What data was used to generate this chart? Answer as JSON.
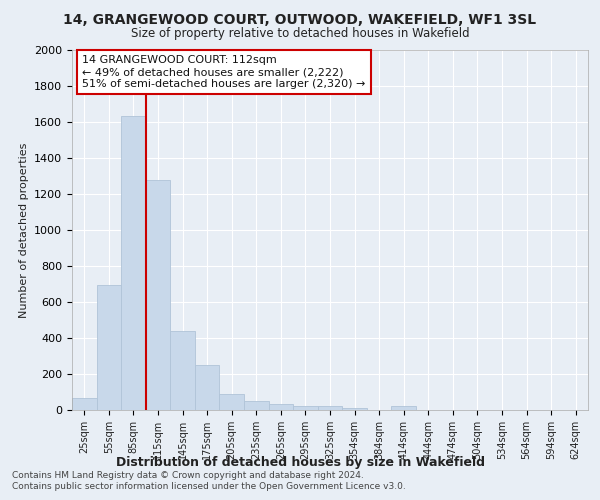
{
  "title": "14, GRANGEWOOD COURT, OUTWOOD, WAKEFIELD, WF1 3SL",
  "subtitle": "Size of property relative to detached houses in Wakefield",
  "xlabel": "Distribution of detached houses by size in Wakefield",
  "ylabel": "Number of detached properties",
  "bar_color": "#c8d8ea",
  "bar_edge_color": "#b0c4d8",
  "background_color": "#e8eef5",
  "plot_bg_color": "#e8eef5",
  "grid_color": "#ffffff",
  "categories": [
    "25sqm",
    "55sqm",
    "85sqm",
    "115sqm",
    "145sqm",
    "175sqm",
    "205sqm",
    "235sqm",
    "265sqm",
    "295sqm",
    "325sqm",
    "354sqm",
    "384sqm",
    "414sqm",
    "444sqm",
    "474sqm",
    "504sqm",
    "534sqm",
    "564sqm",
    "594sqm",
    "624sqm"
  ],
  "values": [
    68,
    695,
    1635,
    1280,
    437,
    252,
    90,
    52,
    32,
    22,
    20,
    10,
    0,
    20,
    0,
    0,
    0,
    0,
    0,
    0,
    0
  ],
  "ylim": [
    0,
    2000
  ],
  "yticks": [
    0,
    200,
    400,
    600,
    800,
    1000,
    1200,
    1400,
    1600,
    1800,
    2000
  ],
  "vline_color": "#cc0000",
  "vline_pos": 2.5,
  "annotation_title": "14 GRANGEWOOD COURT: 112sqm",
  "annotation_line1": "← 49% of detached houses are smaller (2,222)",
  "annotation_line2": "51% of semi-detached houses are larger (2,320) →",
  "annotation_box_color": "#ffffff",
  "annotation_box_edge": "#cc0000",
  "footnote1": "Contains HM Land Registry data © Crown copyright and database right 2024.",
  "footnote2": "Contains public sector information licensed under the Open Government Licence v3.0."
}
